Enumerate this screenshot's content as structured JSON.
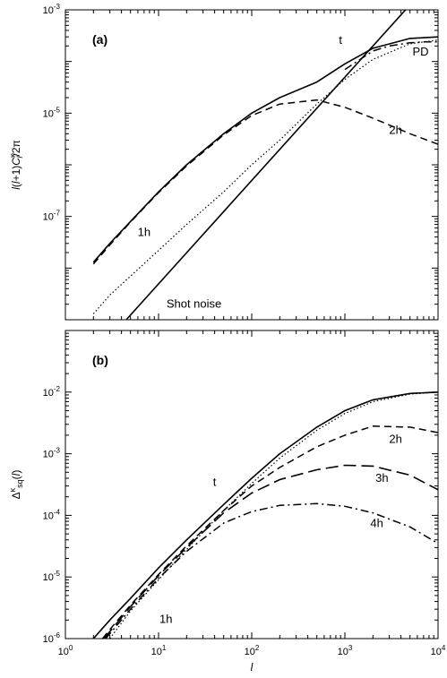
{
  "chart_data": [
    {
      "type": "line",
      "panel_label": "(a)",
      "ylabel": "l(l+1)C_l^κ/2π",
      "xlabel": "",
      "x_scale": "log",
      "y_scale": "log",
      "xlim": [
        1,
        10000
      ],
      "ylim": [
        1e-09,
        0.001
      ],
      "x_ticks": [
        {
          "base": "10",
          "exp": "0"
        },
        {
          "base": "10",
          "exp": "1"
        },
        {
          "base": "10",
          "exp": "2"
        },
        {
          "base": "10",
          "exp": "3"
        },
        {
          "base": "10",
          "exp": "4"
        }
      ],
      "y_ticks": [
        {
          "value": 1e-07,
          "base": "10",
          "exp": "-7"
        },
        {
          "value": 1e-05,
          "base": "10",
          "exp": "-5"
        },
        {
          "value": 0.001,
          "base": "10",
          "exp": "-3"
        }
      ],
      "series": [
        {
          "name": "t",
          "style": "solid",
          "x": [
            2,
            3,
            5,
            10,
            20,
            50,
            100,
            200,
            500,
            1000,
            2000,
            5000,
            10000
          ],
          "y": [
            1.3e-08,
            3e-08,
            8e-08,
            3e-07,
            1e-06,
            4e-06,
            1e-05,
            2e-05,
            4e-05,
            9e-05,
            0.00018,
            0.00028,
            0.0003
          ]
        },
        {
          "name": "2h",
          "style": "dashed",
          "x": [
            2,
            3,
            5,
            10,
            20,
            50,
            100,
            200,
            500,
            1000,
            2000,
            5000,
            10000
          ],
          "y": [
            1.2e-08,
            2.8e-08,
            7.8e-08,
            2.9e-07,
            9.5e-07,
            3.8e-06,
            9e-06,
            1.5e-05,
            1.8e-05,
            1.3e-05,
            8e-06,
            4e-06,
            2.5e-06
          ]
        },
        {
          "name": "1h",
          "style": "dotted",
          "x": [
            2,
            3,
            5,
            10,
            20,
            50,
            100,
            200,
            500,
            1000,
            2000,
            5000,
            10000
          ],
          "y": [
            1.3e-09,
            3e-09,
            7e-09,
            2.2e-08,
            7e-08,
            3e-07,
            1e-06,
            3e-06,
            1.5e-05,
            4.5e-05,
            0.00011,
            0.00022,
            0.00026
          ]
        },
        {
          "name": "PD",
          "style": "dashdot",
          "x": [
            1000,
            2000,
            3000,
            5000,
            7000,
            10000
          ],
          "y": [
            7e-05,
            0.00016,
            0.0002,
            0.00023,
            0.00024,
            0.00024
          ]
        },
        {
          "name": "Shot noise",
          "style": "solid",
          "x": [
            4.5,
            10000
          ],
          "y": [
            1e-09,
            0.005
          ]
        }
      ],
      "annotations": [
        {
          "text": "t",
          "x": 900,
          "y": 0.00022
        },
        {
          "text": "PD",
          "x": 6500,
          "y": 0.00013
        },
        {
          "text": "2h",
          "x": 3500,
          "y": 4e-06
        },
        {
          "text": "1h",
          "x": 7,
          "y": 4.2e-08
        },
        {
          "text": "Shot noise",
          "x": 24,
          "y": 1.7e-09
        }
      ]
    },
    {
      "type": "line",
      "panel_label": "(b)",
      "ylabel": "Δ^κ_sq(l)",
      "xlabel": "l",
      "x_scale": "log",
      "y_scale": "log",
      "xlim": [
        1,
        10000
      ],
      "ylim": [
        1e-06,
        0.1
      ],
      "x_ticks": [
        {
          "base": "10",
          "exp": "0"
        },
        {
          "base": "10",
          "exp": "1"
        },
        {
          "base": "10",
          "exp": "2"
        },
        {
          "base": "10",
          "exp": "3"
        },
        {
          "base": "10",
          "exp": "4"
        }
      ],
      "y_ticks": [
        {
          "value": 1e-06,
          "base": "10",
          "exp": "-6"
        },
        {
          "value": 1e-05,
          "base": "10",
          "exp": "-5"
        },
        {
          "value": 0.0001,
          "base": "10",
          "exp": "-4"
        },
        {
          "value": 0.001,
          "base": "10",
          "exp": "-3"
        },
        {
          "value": 0.01,
          "base": "10",
          "exp": "-2"
        }
      ],
      "series": [
        {
          "name": "t",
          "style": "solid",
          "x": [
            2,
            3,
            5,
            10,
            20,
            50,
            100,
            200,
            500,
            1000,
            2000,
            5000,
            10000
          ],
          "y": [
            1e-06,
            2e-06,
            4.5e-06,
            1.4e-05,
            4e-05,
            0.00015,
            0.0004,
            0.001,
            0.0027,
            0.005,
            0.0075,
            0.0095,
            0.01
          ]
        },
        {
          "name": "1h",
          "style": "dotted",
          "x": [
            3,
            5,
            10,
            20,
            50,
            100,
            200,
            500,
            1000,
            2000,
            5000,
            10000
          ],
          "y": [
            1e-06,
            2.8e-06,
            9e-06,
            2.8e-05,
            0.00012,
            0.00033,
            0.00085,
            0.0024,
            0.0045,
            0.007,
            0.0093,
            0.01
          ]
        },
        {
          "name": "2h",
          "style": "dashed",
          "x": [
            2.5,
            3,
            5,
            10,
            20,
            50,
            100,
            200,
            500,
            1000,
            2000,
            5000,
            10000
          ],
          "y": [
            1e-06,
            1.4e-06,
            3.5e-06,
            1.1e-05,
            3.2e-05,
            0.00012,
            0.0003,
            0.0006,
            0.0013,
            0.002,
            0.0028,
            0.0027,
            0.0022
          ]
        },
        {
          "name": "3h",
          "style": "longdash",
          "x": [
            2.6,
            3,
            5,
            10,
            20,
            50,
            100,
            200,
            500,
            1000,
            2000,
            5000,
            10000
          ],
          "y": [
            1e-06,
            1.3e-06,
            3.3e-06,
            1.05e-05,
            3e-05,
            0.00011,
            0.00023,
            0.00038,
            0.00055,
            0.00065,
            0.00063,
            0.00045,
            0.00026
          ]
        },
        {
          "name": "4h",
          "style": "dashdot",
          "x": [
            2.7,
            3,
            5,
            10,
            20,
            50,
            100,
            200,
            500,
            1000,
            2000,
            5000,
            10000
          ],
          "y": [
            1e-06,
            1.2e-06,
            3e-06,
            9.5e-06,
            2.6e-05,
            7.5e-05,
            0.000115,
            0.000145,
            0.000155,
            0.00014,
            0.00011,
            6.5e-05,
            3.5e-05
          ]
        }
      ],
      "annotations": [
        {
          "text": "t",
          "x": 40,
          "y": 0.0003
        },
        {
          "text": "2h",
          "x": 3500,
          "y": 0.0015
        },
        {
          "text": "3h",
          "x": 2500,
          "y": 0.00035
        },
        {
          "text": "4h",
          "x": 2200,
          "y": 6.5e-05
        },
        {
          "text": "1h",
          "x": 12,
          "y": 1.8e-06
        }
      ]
    }
  ]
}
